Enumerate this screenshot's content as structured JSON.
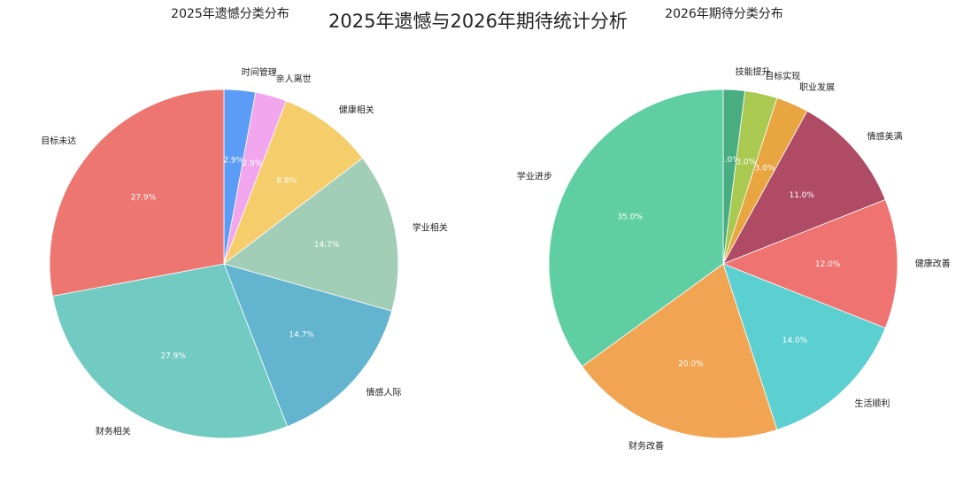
{
  "main_title": "2025年遗憾与2026年期待统计分析",
  "chart_data": [
    {
      "type": "pie",
      "title": "2025年遗憾分类分布",
      "start_angle_deg": 90,
      "direction": "clockwise",
      "slices": [
        {
          "label": "时间管理",
          "value": 2.9,
          "display": "2.9%",
          "color": "#5b9cf6"
        },
        {
          "label": "亲人离世",
          "value": 2.9,
          "display": "2.9%",
          "color": "#f2a6ee"
        },
        {
          "label": "健康相关",
          "value": 8.8,
          "display": "8.8%",
          "color": "#f6cd6b"
        },
        {
          "label": "学业相关",
          "value": 14.7,
          "display": "14.7%",
          "color": "#a2ceb7"
        },
        {
          "label": "情感人际",
          "value": 14.7,
          "display": "14.7%",
          "color": "#62b4cf"
        },
        {
          "label": "财务相关",
          "value": 27.9,
          "display": "27.9%",
          "color": "#72cbc2"
        },
        {
          "label": "目标未达",
          "value": 27.9,
          "display": "27.9%",
          "color": "#ee7670"
        }
      ]
    },
    {
      "type": "pie",
      "title": "2026年期待分类分布",
      "start_angle_deg": 90,
      "direction": "clockwise",
      "slices": [
        {
          "label": "技能提升",
          "value": 2.0,
          "display": "2.0%",
          "color": "#48ad80"
        },
        {
          "label": "目标实现",
          "value": 3.0,
          "display": "3.0%",
          "color": "#a9c951"
        },
        {
          "label": "职业发展",
          "value": 3.0,
          "display": "3.0%",
          "color": "#e8a540"
        },
        {
          "label": "情感美满",
          "value": 11.0,
          "display": "11.0%",
          "color": "#b04b66"
        },
        {
          "label": "健康改善",
          "value": 12.0,
          "display": "12.0%",
          "color": "#ef7370"
        },
        {
          "label": "生活顺利",
          "value": 14.0,
          "display": "14.0%",
          "color": "#5ccfd0"
        },
        {
          "label": "财务改善",
          "value": 20.0,
          "display": "20.0%",
          "color": "#f1a552"
        },
        {
          "label": "学业进步",
          "value": 35.0,
          "display": "35.0%",
          "color": "#60cea3"
        }
      ]
    }
  ]
}
